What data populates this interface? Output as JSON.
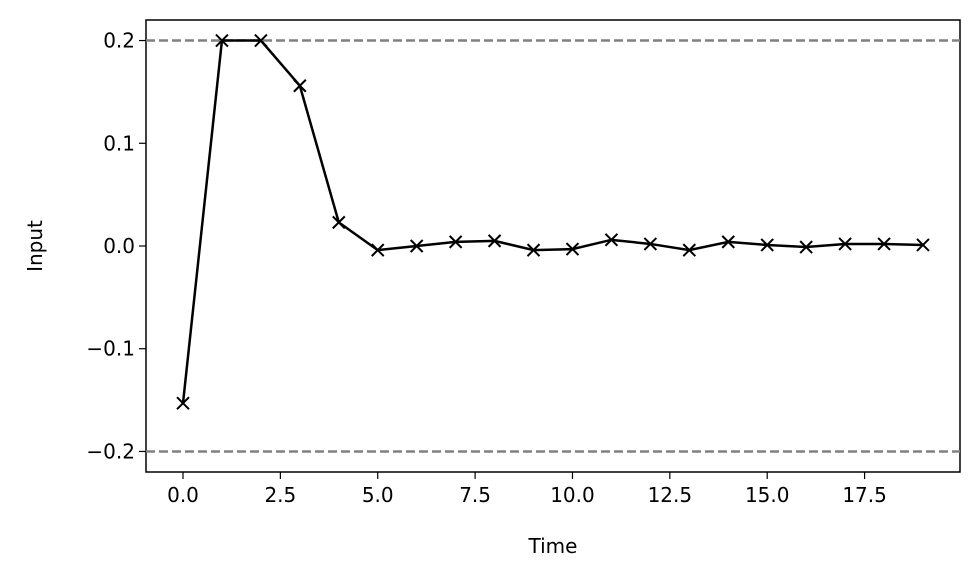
{
  "chart_data": {
    "type": "line",
    "xlabel": "Time",
    "ylabel": "Input",
    "x": [
      0,
      1,
      2,
      3,
      4,
      5,
      6,
      7,
      8,
      9,
      10,
      11,
      12,
      13,
      14,
      15,
      16,
      17,
      18,
      19
    ],
    "series": [
      {
        "color": "#000000",
        "marker": "x",
        "values": [
          -0.153,
          0.2,
          0.2,
          0.156,
          0.023,
          -0.004,
          0.0,
          0.004,
          0.005,
          -0.004,
          -0.003,
          0.006,
          0.002,
          -0.004,
          0.004,
          0.001,
          -0.001,
          0.002,
          0.002,
          0.001
        ]
      }
    ],
    "hlines": [
      {
        "value": 0.2,
        "color": "#808080",
        "style": "dashed"
      },
      {
        "value": -0.2,
        "color": "#808080",
        "style": "dashed"
      }
    ],
    "xlim": [
      -0.95,
      19.95
    ],
    "xticks": [
      {
        "value": 0,
        "label": "0.0"
      },
      2.5,
      {
        "value": 5,
        "label": "5.0"
      },
      7.5,
      {
        "value": 10,
        "label": "10.0"
      },
      12.5,
      {
        "value": 15,
        "label": "15.0"
      },
      17.5
    ],
    "ylim": [
      -0.22,
      0.22
    ],
    "yticks": [
      {
        "value": -0.2,
        "label": "−0.2"
      },
      {
        "value": -0.1,
        "label": "−0.1"
      },
      {
        "value": 0,
        "label": "0.0"
      },
      0.1,
      0.2
    ]
  }
}
